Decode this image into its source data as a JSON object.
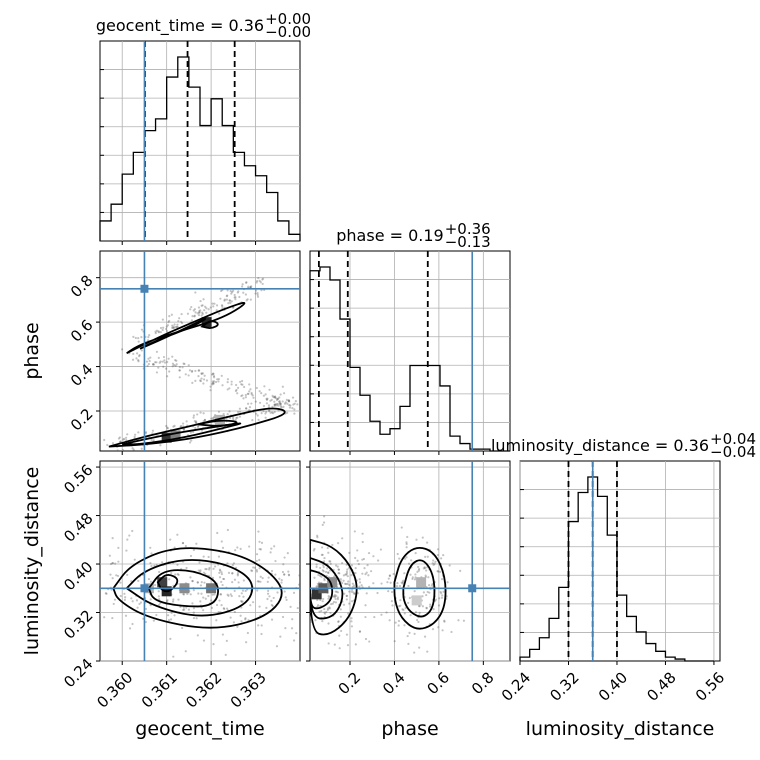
{
  "chart_data": {
    "type": "corner",
    "parameters": [
      "geocent_time",
      "phase",
      "luminosity_distance"
    ],
    "truth": {
      "geocent_time": 0.3605,
      "phase": 0.75,
      "luminosity_distance": 0.36
    },
    "truth_color": "#4682b4",
    "axes": {
      "geocent_time": {
        "label": "geocent_time",
        "range": [
          0.3595,
          0.364
        ],
        "ticks": [
          0.36,
          0.361,
          0.362,
          0.363
        ],
        "tick_labels": [
          "0.360",
          "0.361",
          "0.362",
          "0.363"
        ]
      },
      "phase": {
        "label": "phase",
        "range": [
          0.02,
          0.92
        ],
        "ticks": [
          0.2,
          0.4,
          0.6,
          0.8
        ],
        "tick_labels": [
          "0.2",
          "0.4",
          "0.6",
          "0.8"
        ]
      },
      "luminosity_distance": {
        "label": "luminosity_distance",
        "range": [
          0.24,
          0.57
        ],
        "ticks": [
          0.24,
          0.32,
          0.4,
          0.48,
          0.56
        ],
        "tick_labels": [
          "0.24",
          "0.32",
          "0.40",
          "0.48",
          "0.56"
        ]
      }
    },
    "marginals": [
      {
        "param": "geocent_time",
        "title": {
          "text": "geocent_time = 0.36",
          "sup": "+0.00",
          "sub": "−0.00"
        },
        "quantiles": [
          0.36051,
          0.36147,
          0.36253
        ],
        "bin_edges": [
          0.3595,
          0.35975,
          0.36,
          0.36025,
          0.3605,
          0.36075,
          0.361,
          0.36125,
          0.3615,
          0.36175,
          0.362,
          0.36225,
          0.3625,
          0.36275,
          0.363,
          0.36325,
          0.3635,
          0.36375,
          0.364
        ],
        "counts": [
          0.12,
          0.22,
          0.4,
          0.53,
          0.66,
          0.73,
          0.98,
          1.1,
          0.92,
          0.69,
          0.85,
          0.69,
          0.53,
          0.45,
          0.39,
          0.29,
          0.12,
          0.04
        ]
      },
      {
        "param": "phase",
        "title": {
          "text": "phase = 0.19",
          "sup": "+0.36",
          "sub": "−0.13"
        },
        "quantiles": [
          0.06,
          0.19,
          0.55
        ],
        "bin_edges": [
          0.02,
          0.065,
          0.11,
          0.155,
          0.2,
          0.245,
          0.29,
          0.335,
          0.38,
          0.425,
          0.47,
          0.515,
          0.56,
          0.605,
          0.65,
          0.695,
          0.74,
          0.785,
          0.83,
          0.875,
          0.92
        ],
        "counts": [
          0.97,
          0.99,
          0.92,
          0.71,
          0.45,
          0.3,
          0.16,
          0.09,
          0.12,
          0.24,
          0.46,
          0.46,
          0.46,
          0.35,
          0.08,
          0.04,
          0.01,
          0.01,
          0.0,
          0.0
        ]
      },
      {
        "param": "luminosity_distance",
        "title": {
          "text": "luminosity_distance = 0.36",
          "sup": "+0.04",
          "sub": "−0.04"
        },
        "quantiles": [
          0.32,
          0.36,
          0.4
        ],
        "bin_edges": [
          0.24,
          0.256,
          0.272,
          0.288,
          0.304,
          0.32,
          0.336,
          0.352,
          0.368,
          0.384,
          0.4,
          0.416,
          0.432,
          0.448,
          0.464,
          0.48,
          0.496,
          0.512,
          0.528,
          0.544,
          0.56
        ],
        "counts": [
          0.02,
          0.06,
          0.12,
          0.22,
          0.38,
          0.72,
          0.87,
          0.95,
          0.85,
          0.65,
          0.34,
          0.23,
          0.15,
          0.09,
          0.05,
          0.02,
          0.01,
          0.0,
          0.0,
          0.0
        ]
      }
    ],
    "joint_panels": [
      {
        "x": "geocent_time",
        "y": "phase",
        "point_clouds": [
          {
            "n": 160,
            "x0": 0.3603,
            "x1": 0.3632,
            "y0": 0.52,
            "y1": 0.77,
            "sx": 0.00012,
            "sy": 0.025
          },
          {
            "n": 170,
            "x0": 0.3602,
            "x1": 0.3639,
            "y0": 0.46,
            "y1": 0.22,
            "sx": 0.00014,
            "sy": 0.02
          },
          {
            "n": 200,
            "x0": 0.3598,
            "x1": 0.3637,
            "y0": 0.04,
            "y1": 0.24,
            "sx": 0.00013,
            "sy": 0.025
          }
        ],
        "filled_cells": [
          {
            "x": 0.361,
            "y": 0.08,
            "level": 0.8
          },
          {
            "x": 0.3612,
            "y": 0.09,
            "level": 0.5
          },
          {
            "x": 0.3619,
            "y": 0.6,
            "level": 0.85
          },
          {
            "x": 0.3622,
            "y": 0.16,
            "level": 0.3
          }
        ],
        "contours": [
          [
            [
              0.3601,
              0.46
            ],
            [
              0.3609,
              0.54
            ],
            [
              0.3616,
              0.6
            ],
            [
              0.3623,
              0.66
            ],
            [
              0.3629,
              0.7
            ],
            [
              0.3623,
              0.62
            ],
            [
              0.3613,
              0.56
            ],
            [
              0.3604,
              0.5
            ]
          ],
          [
            [
              0.3604,
              0.48
            ],
            [
              0.3612,
              0.55
            ],
            [
              0.362,
              0.63
            ],
            [
              0.3616,
              0.58
            ],
            [
              0.3608,
              0.52
            ]
          ],
          [
            [
              0.3597,
              0.04
            ],
            [
              0.3606,
              0.09
            ],
            [
              0.3615,
              0.13
            ],
            [
              0.3625,
              0.18
            ],
            [
              0.3634,
              0.22
            ],
            [
              0.3638,
              0.19
            ],
            [
              0.3628,
              0.13
            ],
            [
              0.3617,
              0.08
            ],
            [
              0.3606,
              0.05
            ]
          ],
          [
            [
              0.36,
              0.05
            ],
            [
              0.3609,
              0.09
            ],
            [
              0.3618,
              0.12
            ],
            [
              0.3628,
              0.15
            ],
            [
              0.3624,
              0.13
            ],
            [
              0.3614,
              0.08
            ],
            [
              0.3604,
              0.05
            ]
          ],
          [
            [
              0.3617,
              0.14
            ],
            [
              0.3622,
              0.16
            ],
            [
              0.3627,
              0.15
            ],
            [
              0.3622,
              0.13
            ]
          ],
          [
            [
              0.3618,
              0.58
            ],
            [
              0.362,
              0.61
            ],
            [
              0.3622,
              0.59
            ],
            [
              0.362,
              0.57
            ]
          ]
        ]
      },
      {
        "x": "geocent_time",
        "y": "luminosity_distance",
        "point_clouds": [
          {
            "n": 420,
            "x0": 0.3603,
            "x1": 0.3635,
            "y0": 0.36,
            "y1": 0.36,
            "sx": 0.001,
            "sy": 0.04
          }
        ],
        "filled_cells": [
          {
            "x": 0.3609,
            "y": 0.37,
            "level": 0.75
          },
          {
            "x": 0.361,
            "y": 0.355,
            "level": 0.85
          },
          {
            "x": 0.3614,
            "y": 0.36,
            "level": 0.45
          },
          {
            "x": 0.362,
            "y": 0.36,
            "level": 0.55
          },
          {
            "x": 0.3606,
            "y": 0.36,
            "level": 0.3
          }
        ],
        "contours": [
          [
            [
              0.3598,
              0.36
            ],
            [
              0.3602,
              0.4
            ],
            [
              0.3612,
              0.43
            ],
            [
              0.3625,
              0.42
            ],
            [
              0.3633,
              0.39
            ],
            [
              0.3637,
              0.35
            ],
            [
              0.3632,
              0.31
            ],
            [
              0.362,
              0.29
            ],
            [
              0.3606,
              0.31
            ],
            [
              0.3599,
              0.34
            ]
          ],
          [
            [
              0.3601,
              0.36
            ],
            [
              0.3605,
              0.39
            ],
            [
              0.3614,
              0.41
            ],
            [
              0.3624,
              0.4
            ],
            [
              0.363,
              0.37
            ],
            [
              0.3628,
              0.33
            ],
            [
              0.3618,
              0.31
            ],
            [
              0.3607,
              0.33
            ]
          ],
          [
            [
              0.3606,
              0.36
            ],
            [
              0.3609,
              0.39
            ],
            [
              0.3616,
              0.39
            ],
            [
              0.3622,
              0.37
            ],
            [
              0.3621,
              0.33
            ],
            [
              0.3613,
              0.33
            ],
            [
              0.3607,
              0.34
            ]
          ],
          [
            [
              0.3608,
              0.37
            ],
            [
              0.361,
              0.385
            ],
            [
              0.3613,
              0.375
            ],
            [
              0.3611,
              0.355
            ],
            [
              0.3609,
              0.355
            ]
          ]
        ]
      },
      {
        "x": "phase",
        "y": "luminosity_distance",
        "point_clouds": [
          {
            "n": 280,
            "x0": 0.12,
            "x1": 0.12,
            "y0": 0.36,
            "y1": 0.36,
            "sx": 0.09,
            "sy": 0.04
          },
          {
            "n": 180,
            "x0": 0.52,
            "x1": 0.52,
            "y0": 0.36,
            "y1": 0.36,
            "sx": 0.07,
            "sy": 0.04
          }
        ],
        "filled_cells": [
          {
            "x": 0.05,
            "y": 0.35,
            "level": 0.8
          },
          {
            "x": 0.08,
            "y": 0.36,
            "level": 0.65
          },
          {
            "x": 0.12,
            "y": 0.37,
            "level": 0.45
          },
          {
            "x": 0.52,
            "y": 0.37,
            "level": 0.3
          },
          {
            "x": 0.5,
            "y": 0.34,
            "level": 0.2
          }
        ],
        "contours": [
          [
            [
              0.02,
              0.44
            ],
            [
              0.12,
              0.43
            ],
            [
              0.2,
              0.4
            ],
            [
              0.24,
              0.36
            ],
            [
              0.2,
              0.31
            ],
            [
              0.1,
              0.28
            ],
            [
              0.02,
              0.29
            ]
          ],
          [
            [
              0.02,
              0.41
            ],
            [
              0.1,
              0.4
            ],
            [
              0.16,
              0.37
            ],
            [
              0.17,
              0.34
            ],
            [
              0.12,
              0.31
            ],
            [
              0.02,
              0.31
            ]
          ],
          [
            [
              0.02,
              0.39
            ],
            [
              0.07,
              0.385
            ],
            [
              0.12,
              0.37
            ],
            [
              0.12,
              0.34
            ],
            [
              0.06,
              0.325
            ],
            [
              0.02,
              0.33
            ]
          ],
          [
            [
              0.4,
              0.37
            ],
            [
              0.43,
              0.41
            ],
            [
              0.5,
              0.43
            ],
            [
              0.58,
              0.42
            ],
            [
              0.63,
              0.38
            ],
            [
              0.63,
              0.33
            ],
            [
              0.58,
              0.3
            ],
            [
              0.5,
              0.29
            ],
            [
              0.43,
              0.31
            ],
            [
              0.4,
              0.34
            ]
          ],
          [
            [
              0.44,
              0.36
            ],
            [
              0.47,
              0.4
            ],
            [
              0.53,
              0.41
            ],
            [
              0.58,
              0.38
            ],
            [
              0.58,
              0.33
            ],
            [
              0.53,
              0.31
            ],
            [
              0.47,
              0.32
            ],
            [
              0.44,
              0.34
            ]
          ]
        ]
      }
    ]
  }
}
